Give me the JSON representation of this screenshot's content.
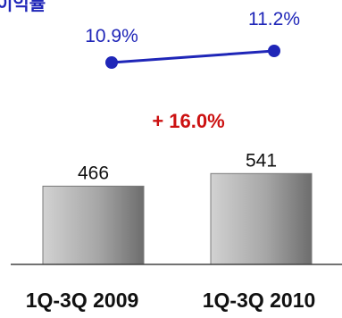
{
  "chart_data": [
    {
      "type": "line",
      "title_fragment": "이익률",
      "x": [
        "1Q-3Q 2009",
        "1Q-3Q 2010"
      ],
      "series": [
        {
          "values": [
            10.9,
            11.2
          ],
          "data_labels": [
            "10.9%",
            "11.2%"
          ],
          "color": "#1f26b8"
        }
      ]
    },
    {
      "type": "bar",
      "categories": [
        "1Q-3Q 2009",
        "1Q-3Q 2010"
      ],
      "values": [
        466,
        541
      ],
      "data_labels": [
        "466",
        "541"
      ],
      "annotation": "+ 16.0%",
      "annotation_color": "#cc1111",
      "bar_color": "#a8a8a8",
      "axis_line": true
    }
  ],
  "colors": {
    "line": "#1f26b8",
    "line_label": "#1f26b8",
    "bar_label": "#111111",
    "axis_label": "#111111",
    "annotation": "#cc1111"
  }
}
